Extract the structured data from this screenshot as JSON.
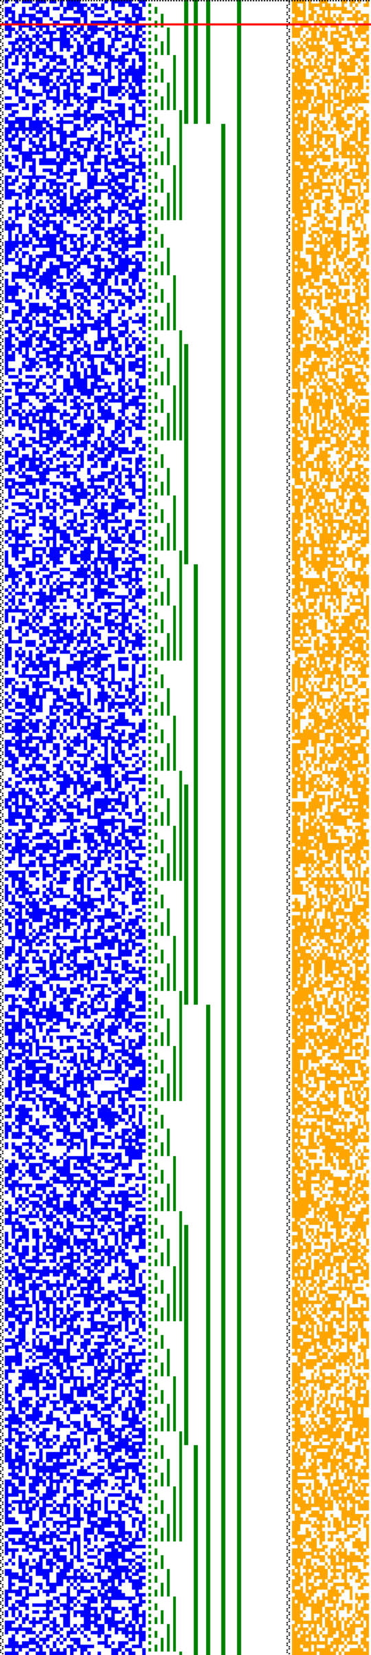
{
  "colors": {
    "background": "#ffffff",
    "random_bits": "#0000ff",
    "counter_bits": "#008000",
    "ruler_bits": "#ffa500",
    "dotted_border": "#000000",
    "marker_line": "#ff0000"
  },
  "layers": [
    "left-dotted-border",
    "blue-random-bit-grid",
    "green-binary-counter-columns",
    "right-dotted-border",
    "orange-bit-grid",
    "red-marker-line"
  ]
}
